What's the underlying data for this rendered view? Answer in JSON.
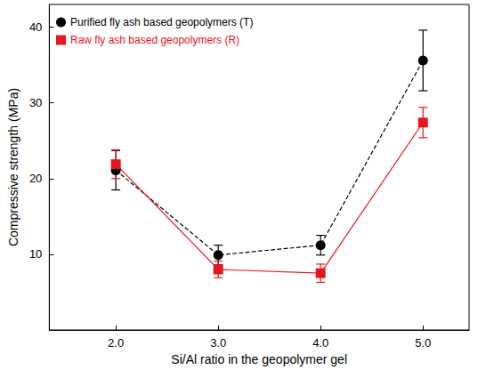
{
  "chart_data": {
    "type": "line",
    "x_label": "Si/Al ratio in the geopolymer gel",
    "y_label": "Compressive strength (MPa)",
    "x": [
      2,
      3,
      4,
      5
    ],
    "xlim": [
      1.35,
      5.45
    ],
    "xticks": [
      {
        "value": 2,
        "label": "2.0"
      },
      {
        "value": 3,
        "label": "3.0"
      },
      {
        "value": 4,
        "label": "4.0"
      },
      {
        "value": 5,
        "label": "5.0"
      }
    ],
    "ylim": [
      0,
      43
    ],
    "yticks": [
      10,
      20,
      30,
      40
    ],
    "grid": false,
    "legend": "upper left",
    "series": [
      {
        "name": "Purified fly ash based geopolymers (T)",
        "color": "#000000",
        "marker": "circle",
        "line_style": "dashed",
        "values": [
          21.1,
          9.9,
          11.2,
          35.6
        ],
        "errors": [
          2.6,
          1.3,
          1.3,
          4.0
        ]
      },
      {
        "name": "Raw fly ash based geopolymers (R)",
        "color": "#e8141e",
        "marker": "square",
        "line_style": "solid",
        "values": [
          21.9,
          8.0,
          7.5,
          27.4
        ],
        "errors": [
          1.9,
          1.1,
          1.2,
          2.0
        ]
      }
    ]
  }
}
